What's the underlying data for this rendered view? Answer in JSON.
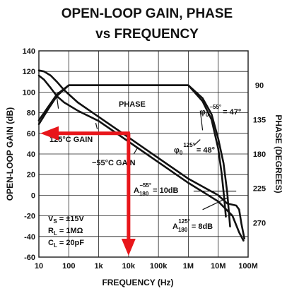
{
  "chart_data": {
    "type": "line",
    "title_line1": "OPEN-LOOP GAIN, PHASE",
    "title_line2": "vs FREQUENCY",
    "xlabel": "FREQUENCY (Hz)",
    "ylabel_left": "OPEN-LOOP GAIN (dB)",
    "ylabel_right": "PHASE (DEGREES)",
    "x_scale": "log",
    "xlim": [
      10,
      100000000
    ],
    "ylim": [
      -60,
      140
    ],
    "phase_range_deg": [
      45,
      315
    ],
    "x_ticks": [
      {
        "value": 10,
        "label": "10"
      },
      {
        "value": 100,
        "label": "100"
      },
      {
        "value": 1000,
        "label": "1k"
      },
      {
        "value": 10000,
        "label": "10k"
      },
      {
        "value": 100000,
        "label": "100k"
      },
      {
        "value": 1000000,
        "label": "1M"
      },
      {
        "value": 10000000,
        "label": "10M"
      },
      {
        "value": 100000000,
        "label": "100M"
      }
    ],
    "y_ticks": [
      {
        "value": 140,
        "label": "140"
      },
      {
        "value": 120,
        "label": "120"
      },
      {
        "value": 100,
        "label": "100"
      },
      {
        "value": 80,
        "label": "80"
      },
      {
        "value": 60,
        "label": "60"
      },
      {
        "value": 40,
        "label": "40"
      },
      {
        "value": 20,
        "label": "20"
      },
      {
        "value": 0,
        "label": "0"
      },
      {
        "value": -20,
        "label": "-20"
      },
      {
        "value": -40,
        "label": "-40"
      },
      {
        "value": -60,
        "label": "-60"
      }
    ],
    "phase_ticks": [
      {
        "value": 90,
        "label": "90"
      },
      {
        "value": 135,
        "label": "135"
      },
      {
        "value": 180,
        "label": "180"
      },
      {
        "value": 225,
        "label": "225"
      },
      {
        "value": 270,
        "label": "270"
      }
    ],
    "grid": true,
    "series": [
      {
        "name": "125°C GAIN",
        "axis": "gain",
        "points": [
          [
            10,
            116
          ],
          [
            15,
            112
          ],
          [
            25,
            104
          ],
          [
            40,
            96
          ],
          [
            70,
            90
          ],
          [
            200,
            82
          ],
          [
            1000,
            72
          ],
          [
            10000,
            52
          ],
          [
            100000,
            32
          ],
          [
            1000000,
            12
          ],
          [
            10000000,
            -6
          ],
          [
            30000000,
            -20
          ],
          [
            50000000,
            -36
          ],
          [
            70000000,
            -44
          ]
        ]
      },
      {
        "name": "-55°C GAIN",
        "axis": "gain",
        "points": [
          [
            10,
            121
          ],
          [
            15,
            120
          ],
          [
            25,
            116
          ],
          [
            40,
            110
          ],
          [
            70,
            102
          ],
          [
            200,
            90
          ],
          [
            1000,
            76
          ],
          [
            10000,
            56
          ],
          [
            100000,
            36
          ],
          [
            1000000,
            16
          ],
          [
            10000000,
            0
          ],
          [
            20000000,
            -8
          ],
          [
            40000000,
            -10
          ],
          [
            50000000,
            -14
          ],
          [
            60000000,
            -28
          ],
          [
            75000000,
            -42
          ]
        ]
      },
      {
        "name": "PHASE (-55°C)",
        "axis": "phase",
        "points": [
          [
            10,
            136
          ],
          [
            20,
            119
          ],
          [
            40,
            102
          ],
          [
            100,
            90
          ],
          [
            1000,
            90
          ],
          [
            100000,
            90
          ],
          [
            1000000,
            90
          ],
          [
            3000000,
            107
          ],
          [
            6000000,
            128
          ],
          [
            10000000,
            160
          ],
          [
            15000000,
            192
          ],
          [
            20000000,
            230
          ],
          [
            25000000,
            275
          ]
        ]
      },
      {
        "name": "PHASE (125°C)",
        "axis": "phase",
        "points": [
          [
            10,
            141
          ],
          [
            20,
            122
          ],
          [
            40,
            104
          ],
          [
            100,
            90
          ],
          [
            1000,
            90
          ],
          [
            100000,
            90
          ],
          [
            1000000,
            90
          ],
          [
            3000000,
            111
          ],
          [
            6000000,
            135
          ],
          [
            10000000,
            173
          ],
          [
            13000000,
            205
          ],
          [
            16000000,
            239
          ],
          [
            18000000,
            262
          ]
        ]
      }
    ],
    "annotations": {
      "phase_label": "PHASE",
      "gain125_label": "125°C GAIN",
      "gain55_label": "−55°C GAIN",
      "phi_m55_main": "φ",
      "phi_m55_sub": "0",
      "phi_m55_sup": "−55°",
      "phi_m55_val": "= 47°",
      "phi_125_main": "φ",
      "phi_125_sub": "0",
      "phi_125_sup": "125°",
      "phi_125_val": "= 48°",
      "a_m55_main": "A",
      "a_m55_sub": "180",
      "a_m55_sup": "−55°",
      "a_m55_val": "= 10dB",
      "a_125_main": "A",
      "a_125_sub": "180",
      "a_125_sup": "125°",
      "a_125_val": "= 8dB",
      "cond_vs": "V",
      "cond_vs_sub": "S",
      "cond_vs_val": "= ±15V",
      "cond_rl": "R",
      "cond_rl_sub": "L",
      "cond_rl_val": "= 1MΩ",
      "cond_cl": "C",
      "cond_cl_sub": "L",
      "cond_cl_val": "= 20pF"
    },
    "overlay_arrow": {
      "color": "#e8161b",
      "from": [
        10000,
        -60
      ],
      "corner": [
        10000,
        60
      ],
      "to": [
        10,
        60
      ]
    },
    "colors": {
      "ink": "#111111",
      "arrow": "#e8161b"
    }
  }
}
